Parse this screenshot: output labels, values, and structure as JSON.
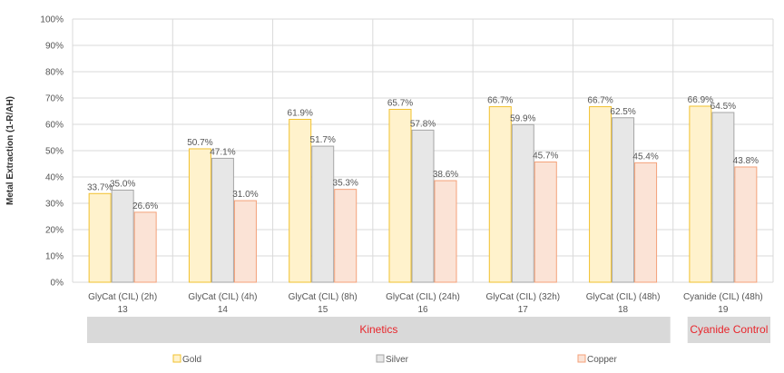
{
  "chart_data": {
    "type": "bar",
    "ylabel": "Metal Extraction (1-R/AH)",
    "ylim": [
      0,
      100
    ],
    "yticks": [
      "0%",
      "10%",
      "20%",
      "30%",
      "40%",
      "50%",
      "60%",
      "70%",
      "80%",
      "90%",
      "100%"
    ],
    "categories": [
      {
        "name": "GlyCat (CIL) (2h)",
        "id": "13"
      },
      {
        "name": "GlyCat (CIL) (4h)",
        "id": "14"
      },
      {
        "name": "GlyCat (CIL) (8h)",
        "id": "15"
      },
      {
        "name": "GlyCat (CIL) (24h)",
        "id": "16"
      },
      {
        "name": "GlyCat (CIL) (32h)",
        "id": "17"
      },
      {
        "name": "GlyCat (CIL) (48h)",
        "id": "18"
      },
      {
        "name": "Cyanide (CIL) (48h)",
        "id": "19"
      }
    ],
    "series": [
      {
        "name": "Gold",
        "color": "#f2c12e",
        "fill": "#fff2cc",
        "values": [
          33.7,
          50.7,
          61.9,
          65.7,
          66.7,
          66.7,
          66.9
        ],
        "labels": [
          "33.7%",
          "50.7%",
          "61.9%",
          "65.7%",
          "66.7%",
          "66.7%",
          "66.9%"
        ]
      },
      {
        "name": "Silver",
        "color": "#a6a6a6",
        "fill": "#e7e7e7",
        "values": [
          35.0,
          47.1,
          51.7,
          57.8,
          59.9,
          62.5,
          64.5
        ],
        "labels": [
          "35.0%",
          "47.1%",
          "51.7%",
          "57.8%",
          "59.9%",
          "62.5%",
          "64.5%"
        ]
      },
      {
        "name": "Copper",
        "color": "#f4a27a",
        "fill": "#fbe3d6",
        "values": [
          26.6,
          31.0,
          35.3,
          38.6,
          45.7,
          45.4,
          43.8
        ],
        "labels": [
          "26.6%",
          "31.0%",
          "35.3%",
          "38.6%",
          "45.7%",
          "45.4%",
          "43.8%"
        ]
      }
    ],
    "groups": [
      {
        "label": "Kinetics",
        "from": 0,
        "to": 5
      },
      {
        "label": "Cyanide Control",
        "from": 6,
        "to": 6
      }
    ],
    "group_band_color": "#d9d9d9",
    "group_label_color": "#e8262c",
    "grid": true,
    "legend_position": "bottom"
  }
}
